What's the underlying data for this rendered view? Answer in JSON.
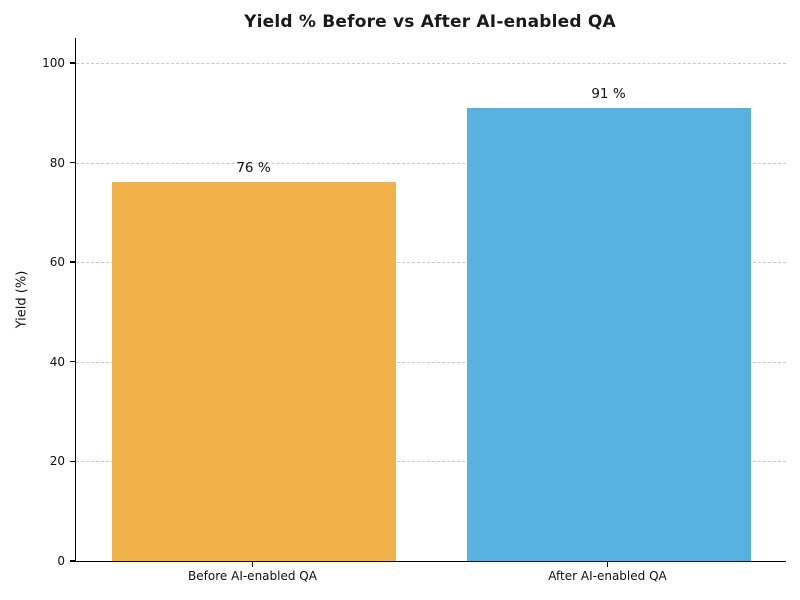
{
  "chart_data": {
    "type": "bar",
    "title": "Yield % Before vs After AI-enabled QA",
    "categories": [
      "Before AI-enabled QA",
      "After AI-enabled QA"
    ],
    "values": [
      76,
      91
    ],
    "value_labels": [
      "76 %",
      "91 %"
    ],
    "bar_colors": [
      "#F2B24A",
      "#57B2E2"
    ],
    "xlabel": "",
    "ylabel": "Yield (%)",
    "ylim": [
      0,
      105
    ],
    "yticks": [
      0,
      20,
      40,
      60,
      80,
      100
    ],
    "grid": "horizontal-dashed",
    "legend": "none",
    "bar_width_fraction": 0.8
  },
  "colors": {
    "grid": "#c9c9c9",
    "axis": "#000000",
    "text": "#111111",
    "background": "#ffffff"
  }
}
